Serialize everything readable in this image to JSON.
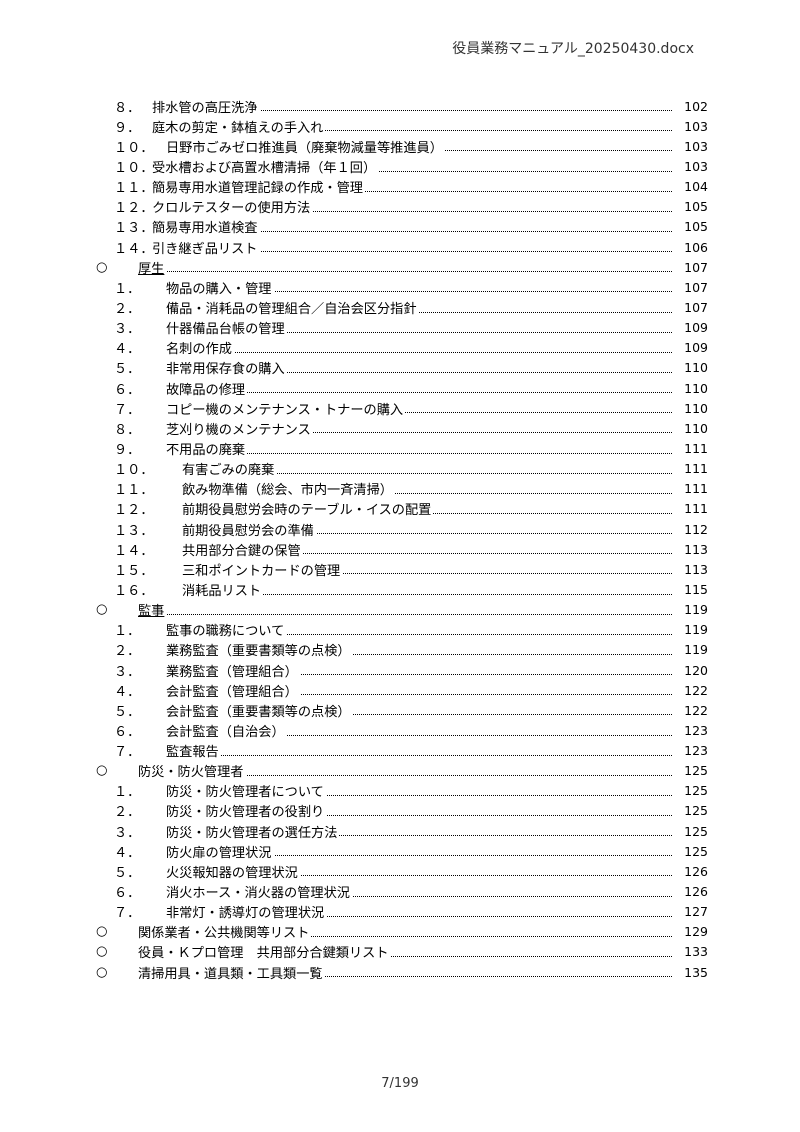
{
  "header": {
    "filename": "役員業務マニュアル_20250430.docx"
  },
  "footer": {
    "page": "7/199"
  },
  "toc": [
    {
      "num": "８．",
      "title": "排水管の高圧洗浄",
      "page": "102",
      "lvl": "lvl1"
    },
    {
      "num": "９．",
      "title": "庭木の剪定・鉢植えの手入れ",
      "page": "103",
      "lvl": "lvl1"
    },
    {
      "num": "１０．",
      "title": "日野市ごみゼロ推進員（廃棄物減量等推進員）",
      "page": "103",
      "lvl": "lvl1w"
    },
    {
      "num": "１０．",
      "title": "受水槽および高置水槽清掃（年１回）",
      "page": "103",
      "lvl": "lvl1"
    },
    {
      "num": "１１．",
      "title": "簡易専用水道管理記録の作成・管理",
      "page": "104",
      "lvl": "lvl1"
    },
    {
      "num": "１２．",
      "title": "クロルテスターの使用方法",
      "page": "105",
      "lvl": "lvl1"
    },
    {
      "num": "１３．",
      "title": "簡易専用水道検査",
      "page": "105",
      "lvl": "lvl1"
    },
    {
      "num": "１４．",
      "title": "引き継ぎ品リスト",
      "page": "106",
      "lvl": "lvl1"
    },
    {
      "num": "○",
      "title": "厚生",
      "page": "107",
      "lvl": "lvl0",
      "linked": true
    },
    {
      "num": "１．",
      "title": "物品の購入・管理",
      "page": "107",
      "lvl": "lvl2"
    },
    {
      "num": "２．",
      "title": "備品・消耗品の管理組合／自治会区分指針",
      "page": "107",
      "lvl": "lvl2"
    },
    {
      "num": "３．",
      "title": "什器備品台帳の管理",
      "page": "109",
      "lvl": "lvl2"
    },
    {
      "num": "４．",
      "title": "名刺の作成",
      "page": "109",
      "lvl": "lvl2"
    },
    {
      "num": "５．",
      "title": "非常用保存食の購入",
      "page": "110",
      "lvl": "lvl2"
    },
    {
      "num": "６．",
      "title": "故障品の修理",
      "page": "110",
      "lvl": "lvl2"
    },
    {
      "num": "７．",
      "title": "コピー機のメンテナンス・トナーの購入",
      "page": "110",
      "lvl": "lvl2"
    },
    {
      "num": "８．",
      "title": "芝刈り機のメンテナンス",
      "page": "110",
      "lvl": "lvl2"
    },
    {
      "num": "９．",
      "title": "不用品の廃棄",
      "page": "111",
      "lvl": "lvl2"
    },
    {
      "num": "１０．",
      "title": "有害ごみの廃棄",
      "page": "111",
      "lvl": "lvl2w"
    },
    {
      "num": "１１．",
      "title": "飲み物準備（総会、市内一斉清掃）",
      "page": "111",
      "lvl": "lvl2w"
    },
    {
      "num": "１２．",
      "title": "前期役員慰労会時のテーブル・イスの配置",
      "page": "111",
      "lvl": "lvl2w"
    },
    {
      "num": "１３．",
      "title": "前期役員慰労会の準備",
      "page": "112",
      "lvl": "lvl2w"
    },
    {
      "num": "１４．",
      "title": "共用部分合鍵の保管",
      "page": "113",
      "lvl": "lvl2w"
    },
    {
      "num": "１５．",
      "title": "三和ポイントカードの管理",
      "page": "113",
      "lvl": "lvl2w"
    },
    {
      "num": "１６．",
      "title": "消耗品リスト",
      "page": "115",
      "lvl": "lvl2w"
    },
    {
      "num": "○",
      "title": "監事",
      "page": "119",
      "lvl": "lvl0",
      "linked": true
    },
    {
      "num": "１．",
      "title": "監事の職務について",
      "page": "119",
      "lvl": "lvl2"
    },
    {
      "num": "２．",
      "title": "業務監査（重要書類等の点検）",
      "page": "119",
      "lvl": "lvl2"
    },
    {
      "num": "３．",
      "title": "業務監査（管理組合）",
      "page": "120",
      "lvl": "lvl2"
    },
    {
      "num": "４．",
      "title": "会計監査（管理組合）",
      "page": "122",
      "lvl": "lvl2"
    },
    {
      "num": "５．",
      "title": "会計監査（重要書類等の点検）",
      "page": "122",
      "lvl": "lvl2"
    },
    {
      "num": "６．",
      "title": "会計監査（自治会）",
      "page": "123",
      "lvl": "lvl2"
    },
    {
      "num": "７．",
      "title": "監査報告",
      "page": "123",
      "lvl": "lvl2"
    },
    {
      "num": "○",
      "title": "防災・防火管理者",
      "page": "125",
      "lvl": "lvl0"
    },
    {
      "num": "１．",
      "title": "防災・防火管理者について",
      "page": "125",
      "lvl": "lvl2"
    },
    {
      "num": "２．",
      "title": "防災・防火管理者の役割り",
      "page": "125",
      "lvl": "lvl2"
    },
    {
      "num": "３．",
      "title": "防災・防火管理者の選任方法",
      "page": "125",
      "lvl": "lvl2"
    },
    {
      "num": "４．",
      "title": "防火扉の管理状況",
      "page": "125",
      "lvl": "lvl2"
    },
    {
      "num": "５．",
      "title": "火災報知器の管理状況",
      "page": "126",
      "lvl": "lvl2"
    },
    {
      "num": "６．",
      "title": "消火ホース・消火器の管理状況",
      "page": "126",
      "lvl": "lvl2"
    },
    {
      "num": "７．",
      "title": "非常灯・誘導灯の管理状況",
      "page": "127",
      "lvl": "lvl2"
    },
    {
      "num": "○",
      "title": "関係業者・公共機関等リスト",
      "page": "129",
      "lvl": "lvl0"
    },
    {
      "num": "○",
      "title": "役員・Ｋプロ管理　共用部分合鍵類リスト",
      "page": "133",
      "lvl": "lvl0"
    },
    {
      "num": "○",
      "title": "清掃用具・道具類・工具類一覧",
      "page": "135",
      "lvl": "lvl0"
    }
  ]
}
